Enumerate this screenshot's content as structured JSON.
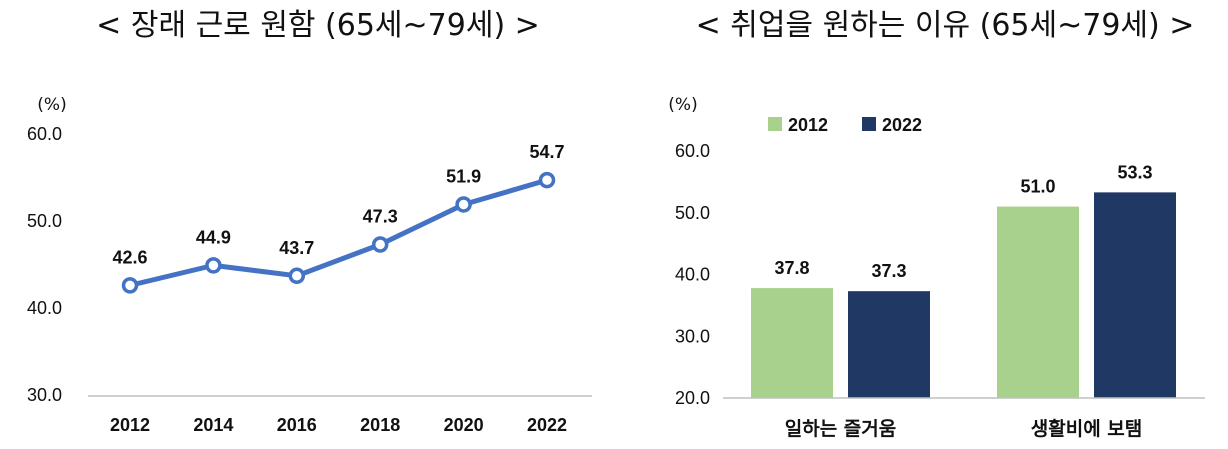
{
  "chart_data": [
    {
      "type": "line",
      "title": "< 장래 근로 원함 (65세~79세) >",
      "unit": "(%)",
      "categories": [
        "2012",
        "2014",
        "2016",
        "2018",
        "2020",
        "2022"
      ],
      "values": [
        42.6,
        44.9,
        43.7,
        47.3,
        51.9,
        54.7
      ],
      "value_labels": [
        "42.6",
        "44.9",
        "43.7",
        "47.3",
        "51.9",
        "54.7"
      ],
      "yticks": [
        "30.0",
        "40.0",
        "50.0",
        "60.0"
      ],
      "ylim": [
        30,
        60
      ],
      "grid": false,
      "color": "#4472C4"
    },
    {
      "type": "bar",
      "title": "< 취업을 원하는 이유 (65세~79세) >",
      "unit": "(%)",
      "categories": [
        "일하는 즐거움",
        "생활비에 보탬"
      ],
      "series": [
        {
          "name": "2012",
          "values": [
            37.8,
            51.0
          ],
          "value_labels": [
            "37.8",
            "51.0"
          ],
          "color": "#A9D18E"
        },
        {
          "name": "2022",
          "values": [
            37.3,
            53.3
          ],
          "value_labels": [
            "37.3",
            "53.3"
          ],
          "color": "#203864"
        }
      ],
      "yticks": [
        "20.0",
        "30.0",
        "40.0",
        "50.0",
        "60.0"
      ],
      "ylim": [
        20,
        60
      ],
      "grid": false,
      "legend": "top-left"
    }
  ]
}
